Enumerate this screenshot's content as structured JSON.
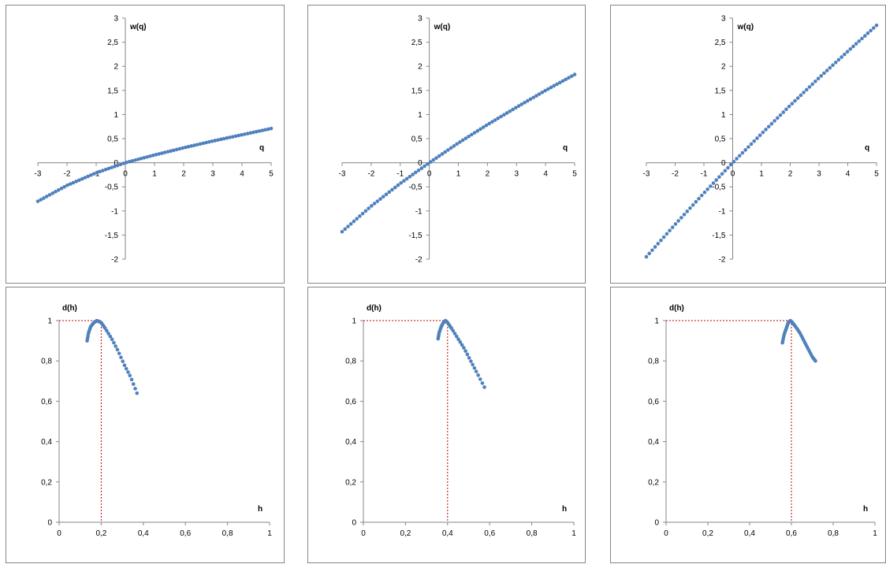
{
  "chart_data": [
    {
      "type": "scatter",
      "panel": "top-left",
      "ylabel": "w(q)",
      "xlabel": "q",
      "xlim": [
        -3,
        5
      ],
      "ylim": [
        -2,
        3
      ],
      "x_ticks": [
        "-3",
        "-2",
        "-1",
        "0",
        "1",
        "2",
        "3",
        "4",
        "5"
      ],
      "y_ticks": [
        "-2",
        "-1,5",
        "-1",
        "-0,5",
        "0",
        "0,5",
        "1",
        "1,5",
        "2",
        "2,5",
        "3"
      ],
      "series": [
        {
          "x": [
            -3,
            -2,
            -1,
            0,
            1,
            2,
            3,
            4,
            5
          ],
          "y": [
            -0.8,
            -0.47,
            -0.21,
            0,
            0.16,
            0.31,
            0.45,
            0.58,
            0.71
          ]
        }
      ],
      "color": "#4f81bd",
      "grid": false
    },
    {
      "type": "scatter",
      "panel": "top-middle",
      "ylabel": "w(q)",
      "xlabel": "q",
      "xlim": [
        -3,
        5
      ],
      "ylim": [
        -2,
        3
      ],
      "x_ticks": [
        "-3",
        "-2",
        "-1",
        "0",
        "1",
        "2",
        "3",
        "4",
        "5"
      ],
      "y_ticks": [
        "-2",
        "-1,5",
        "-1",
        "-0,5",
        "0",
        "0,5",
        "1",
        "1,5",
        "2",
        "2,5",
        "3"
      ],
      "series": [
        {
          "x": [
            -3,
            -2,
            -1,
            0,
            1,
            2,
            3,
            4,
            5
          ],
          "y": [
            -1.43,
            -0.9,
            -0.43,
            0,
            0.41,
            0.79,
            1.15,
            1.5,
            1.83
          ]
        }
      ],
      "color": "#4f81bd",
      "grid": false
    },
    {
      "type": "scatter",
      "panel": "top-right",
      "ylabel": "w(q)",
      "xlabel": "q",
      "xlim": [
        -3,
        5
      ],
      "ylim": [
        -2,
        3
      ],
      "x_ticks": [
        "-3",
        "-2",
        "-1",
        "0",
        "1",
        "2",
        "3",
        "4",
        "5"
      ],
      "y_ticks": [
        "-2",
        "-1,5",
        "-1",
        "-0,5",
        "0",
        "0,5",
        "1",
        "1,5",
        "2",
        "2,5",
        "3"
      ],
      "series": [
        {
          "x": [
            -3,
            -2,
            -1,
            0,
            1,
            2,
            3,
            4,
            5
          ],
          "y": [
            -1.95,
            -1.28,
            -0.63,
            0,
            0.6,
            1.19,
            1.76,
            2.31,
            2.85
          ]
        }
      ],
      "color": "#4f81bd",
      "grid": false
    },
    {
      "type": "scatter",
      "panel": "bottom-left",
      "ylabel": "d(h)",
      "xlabel": "h",
      "xlim": [
        0,
        1
      ],
      "ylim": [
        0,
        1
      ],
      "x_ticks": [
        "0",
        "0,2",
        "0,4",
        "0,6",
        "0,8",
        "1"
      ],
      "y_ticks": [
        "0",
        "0,2",
        "0,4",
        "0,6",
        "0,8",
        "1"
      ],
      "series": [
        {
          "x": [
            0.133,
            0.14,
            0.15,
            0.165,
            0.18,
            0.2,
            0.22,
            0.25,
            0.28,
            0.31,
            0.34,
            0.37
          ],
          "y": [
            0.9,
            0.94,
            0.97,
            0.99,
            1.0,
            0.99,
            0.96,
            0.91,
            0.85,
            0.78,
            0.72,
            0.64
          ]
        }
      ],
      "reference": {
        "x": 0.2,
        "y": 1
      },
      "color": "#4f81bd",
      "grid": false
    },
    {
      "type": "scatter",
      "panel": "bottom-middle",
      "ylabel": "d(h)",
      "xlabel": "h",
      "xlim": [
        0,
        1
      ],
      "ylim": [
        0,
        1
      ],
      "x_ticks": [
        "0",
        "0,2",
        "0,4",
        "0,6",
        "0,8",
        "1"
      ],
      "y_ticks": [
        "0",
        "0,2",
        "0,4",
        "0,6",
        "0,8",
        "1"
      ],
      "series": [
        {
          "x": [
            0.355,
            0.36,
            0.37,
            0.38,
            0.39,
            0.4,
            0.42,
            0.45,
            0.48,
            0.51,
            0.54,
            0.575
          ],
          "y": [
            0.91,
            0.94,
            0.97,
            0.99,
            1.0,
            0.99,
            0.96,
            0.91,
            0.86,
            0.8,
            0.74,
            0.67
          ]
        }
      ],
      "reference": {
        "x": 0.4,
        "y": 1
      },
      "color": "#4f81bd",
      "grid": false
    },
    {
      "type": "scatter",
      "panel": "bottom-right",
      "ylabel": "d(h)",
      "xlabel": "h",
      "xlim": [
        0,
        1
      ],
      "ylim": [
        0,
        1
      ],
      "x_ticks": [
        "0",
        "0,2",
        "0,4",
        "0,6",
        "0,8",
        "1"
      ],
      "y_ticks": [
        "0",
        "0,2",
        "0,4",
        "0,6",
        "0,8",
        "1"
      ],
      "series": [
        {
          "x": [
            0.557,
            0.565,
            0.575,
            0.585,
            0.595,
            0.605,
            0.62,
            0.64,
            0.66,
            0.68,
            0.7,
            0.715
          ],
          "y": [
            0.89,
            0.93,
            0.96,
            0.99,
            1.0,
            0.99,
            0.97,
            0.94,
            0.9,
            0.86,
            0.82,
            0.8
          ]
        }
      ],
      "reference": {
        "x": 0.6,
        "y": 1
      },
      "color": "#4f81bd",
      "grid": false
    }
  ]
}
